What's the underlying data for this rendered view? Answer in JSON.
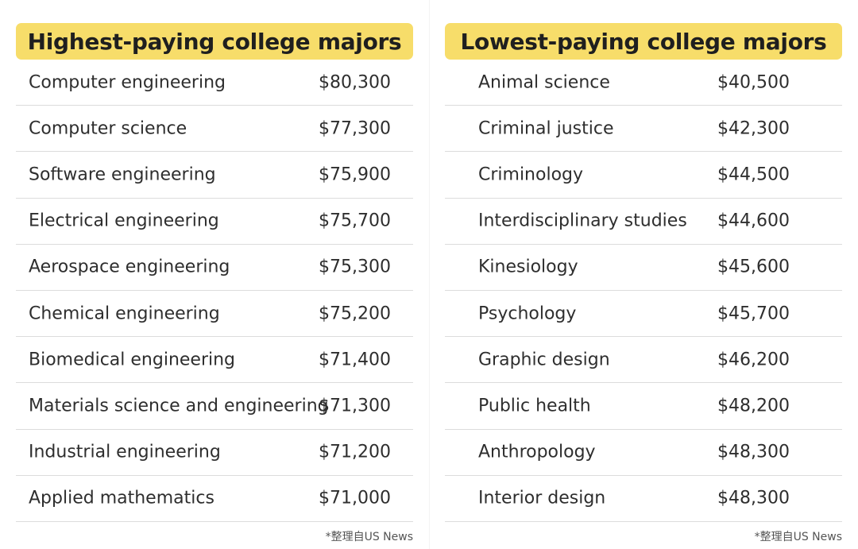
{
  "highest": {
    "title": "Highest-paying college majors",
    "rows": [
      {
        "major": "Computer engineering",
        "salary": "$80,300"
      },
      {
        "major": "Computer science",
        "salary": "$77,300"
      },
      {
        "major": "Software engineering",
        "salary": "$75,900"
      },
      {
        "major": "Electrical engineering",
        "salary": "$75,700"
      },
      {
        "major": "Aerospace engineering",
        "salary": "$75,300"
      },
      {
        "major": "Chemical engineering",
        "salary": "$75,200"
      },
      {
        "major": "Biomedical engineering",
        "salary": "$71,400"
      },
      {
        "major": "Materials science and engineering",
        "salary": "$71,300"
      },
      {
        "major": "Industrial engineering",
        "salary": "$71,200"
      },
      {
        "major": "Applied mathematics",
        "salary": "$71,000"
      }
    ],
    "footnote": "*整理自US News"
  },
  "lowest": {
    "title": "Lowest-paying college majors",
    "rows": [
      {
        "major": "Animal science",
        "salary": "$40,500"
      },
      {
        "major": "Criminal justice",
        "salary": "$42,300"
      },
      {
        "major": "Criminology",
        "salary": "$44,500"
      },
      {
        "major": "Interdisciplinary studies",
        "salary": "$44,600"
      },
      {
        "major": "Kinesiology",
        "salary": "$45,600"
      },
      {
        "major": "Psychology",
        "salary": "$45,700"
      },
      {
        "major": "Graphic design",
        "salary": "$46,200"
      },
      {
        "major": "Public health",
        "salary": "$48,200"
      },
      {
        "major": "Anthropology",
        "salary": "$48,300"
      },
      {
        "major": "Interior design",
        "salary": "$48,300"
      }
    ],
    "footnote": "*整理自US News"
  }
}
